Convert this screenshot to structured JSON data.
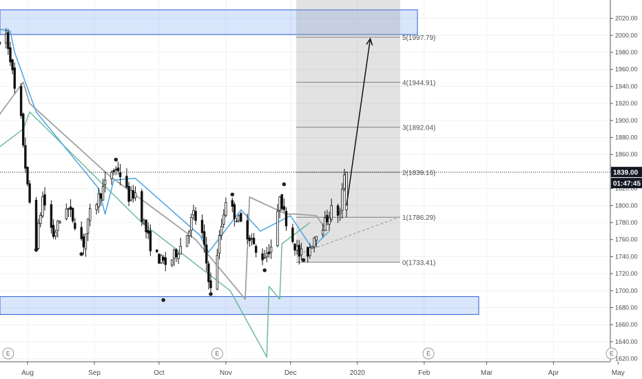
{
  "chart_data": {
    "type": "candlestick",
    "title": "",
    "ylim": [
      1603,
      2026
    ],
    "y_ticks": [
      1620,
      1640,
      1660,
      1680,
      1700,
      1720,
      1740,
      1760,
      1780,
      1800,
      1820,
      1840,
      1860,
      1880,
      1900,
      1920,
      1940,
      1960,
      1980,
      2000,
      2020
    ],
    "x_tick_labels": [
      "Aug",
      "Sep",
      "Oct",
      "Nov",
      "Dec",
      "2020",
      "Feb",
      "Mar",
      "Apr",
      "May"
    ],
    "last_price": "1839.00",
    "countdown": "01:47:45",
    "price_path": [
      [
        "Jul 18",
        1985
      ],
      [
        "Jul 22",
        2001
      ],
      [
        "Jul 24",
        1975
      ],
      [
        "Jul 26",
        1935
      ],
      [
        "Jul 29",
        1900
      ],
      [
        "Aug 01",
        1820
      ],
      [
        "Aug 05",
        1755
      ],
      [
        "Aug 08",
        1810
      ],
      [
        "Aug 13",
        1765
      ],
      [
        "Aug 19",
        1800
      ],
      [
        "Aug 23",
        1780
      ],
      [
        "Aug 27",
        1755
      ],
      [
        "Aug 30",
        1790
      ],
      [
        "Sep 04",
        1815
      ],
      [
        "Sep 09",
        1840
      ],
      [
        "Sep 12",
        1843
      ],
      [
        "Sep 17",
        1810
      ],
      [
        "Sep 20",
        1815
      ],
      [
        "Sep 25",
        1770
      ],
      [
        "Sep 28",
        1745
      ],
      [
        "Oct 02",
        1735
      ],
      [
        "Oct 05",
        1730
      ],
      [
        "Oct 09",
        1745
      ],
      [
        "Oct 13",
        1760
      ],
      [
        "Oct 17",
        1790
      ],
      [
        "Oct 21",
        1765
      ],
      [
        "Oct 25",
        1700
      ],
      [
        "Oct 28",
        1745
      ],
      [
        "Nov 01",
        1808
      ],
      [
        "Nov 05",
        1790
      ],
      [
        "Nov 09",
        1775
      ],
      [
        "Nov 13",
        1760
      ],
      [
        "Nov 16",
        1735
      ],
      [
        "Nov 20",
        1745
      ],
      [
        "Nov 24",
        1760
      ],
      [
        "Nov 26",
        1815
      ],
      [
        "Nov 28",
        1790
      ],
      [
        "Dec 02",
        1760
      ],
      [
        "Dec 05",
        1742
      ],
      [
        "Dec 09",
        1745
      ],
      [
        "Dec 13",
        1770
      ],
      [
        "Dec 17",
        1780
      ],
      [
        "Dec 20",
        1795
      ],
      [
        "Dec 24",
        1790
      ],
      [
        "Dec 26",
        1839
      ]
    ],
    "swing_markers": [
      [
        "Aug 05",
        1748
      ],
      [
        "Aug 26",
        1743
      ],
      [
        "Sep 11",
        1854
      ],
      [
        "Oct 03",
        1689
      ],
      [
        "Oct 25",
        1696
      ],
      [
        "Nov 04",
        1813
      ],
      [
        "Nov 19",
        1724
      ],
      [
        "Nov 28",
        1825
      ],
      [
        "Dec 07",
        1736
      ]
    ],
    "fib_extension": {
      "levels": [
        {
          "ratio": "0",
          "price": 1733.41,
          "label": "0(1733.41)"
        },
        {
          "ratio": "1",
          "price": 1786.29,
          "label": "1(1786.29)"
        },
        {
          "ratio": "2",
          "price": 1839.16,
          "label": "2(1839.16)"
        },
        {
          "ratio": "3",
          "price": 1892.04,
          "label": "3(1892.04)"
        },
        {
          "ratio": "4",
          "price": 1944.91,
          "label": "4(1944.91)"
        },
        {
          "ratio": "5",
          "price": 1997.79,
          "label": "5(1997.79)"
        }
      ]
    },
    "zones": [
      {
        "name": "resistance",
        "low": 2001,
        "high": 2030
      },
      {
        "name": "support",
        "low": 1672,
        "high": 1693
      }
    ],
    "forecast_arrow": {
      "from": [
        "Dec 27",
        1800
      ],
      "to": [
        "Jan 07",
        1996
      ]
    },
    "events": [
      {
        "label": "E",
        "date": "Jul 23"
      },
      {
        "label": "E",
        "date": "Oct 28"
      },
      {
        "label": "E",
        "date": "Feb 03"
      },
      {
        "label": "E",
        "date": "Apr 28"
      }
    ],
    "lines": {
      "grey": [
        [
          "Jul 17",
          1900
        ],
        [
          "Jul 30",
          1945
        ],
        [
          "Aug 02",
          1920
        ],
        [
          "Sep 08",
          1835
        ],
        [
          "Oct 18",
          1760
        ],
        [
          "Nov 10",
          1690
        ],
        [
          "Nov 12",
          1810
        ],
        [
          "Nov 29",
          1790
        ],
        [
          "Dec 04",
          1790
        ],
        [
          "Dec 13",
          1788
        ],
        [
          "Dec 18",
          1770
        ]
      ],
      "blue": [
        [
          "Jul 17",
          2008
        ],
        [
          "Jul 24",
          2005
        ],
        [
          "Jul 26",
          1980
        ],
        [
          "Aug 05",
          1910
        ],
        [
          "Sep 03",
          1820
        ],
        [
          "Sep 06",
          1790
        ],
        [
          "Sep 10",
          1830
        ],
        [
          "Sep 20",
          1832
        ],
        [
          "Oct 20",
          1765
        ],
        [
          "Oct 24",
          1745
        ],
        [
          "Nov 08",
          1795
        ],
        [
          "Nov 17",
          1770
        ],
        [
          "Dec 01",
          1788
        ],
        [
          "Dec 11",
          1750
        ],
        [
          "Dec 19",
          1770
        ]
      ],
      "green": [
        [
          "Jul 17",
          1865
        ],
        [
          "Jul 30",
          1890
        ],
        [
          "Aug 02",
          1910
        ],
        [
          "Sep 23",
          1780
        ],
        [
          "Nov 03",
          1700
        ],
        [
          "Nov 20",
          1622
        ],
        [
          "Nov 21",
          1705
        ],
        [
          "Nov 26",
          1690
        ],
        [
          "Nov 27",
          1755
        ],
        [
          "Dec 10",
          1780
        ]
      ],
      "dashed": [
        [
          "Dec 07",
          1745
        ],
        [
          "Jan 20",
          1786
        ]
      ]
    }
  }
}
